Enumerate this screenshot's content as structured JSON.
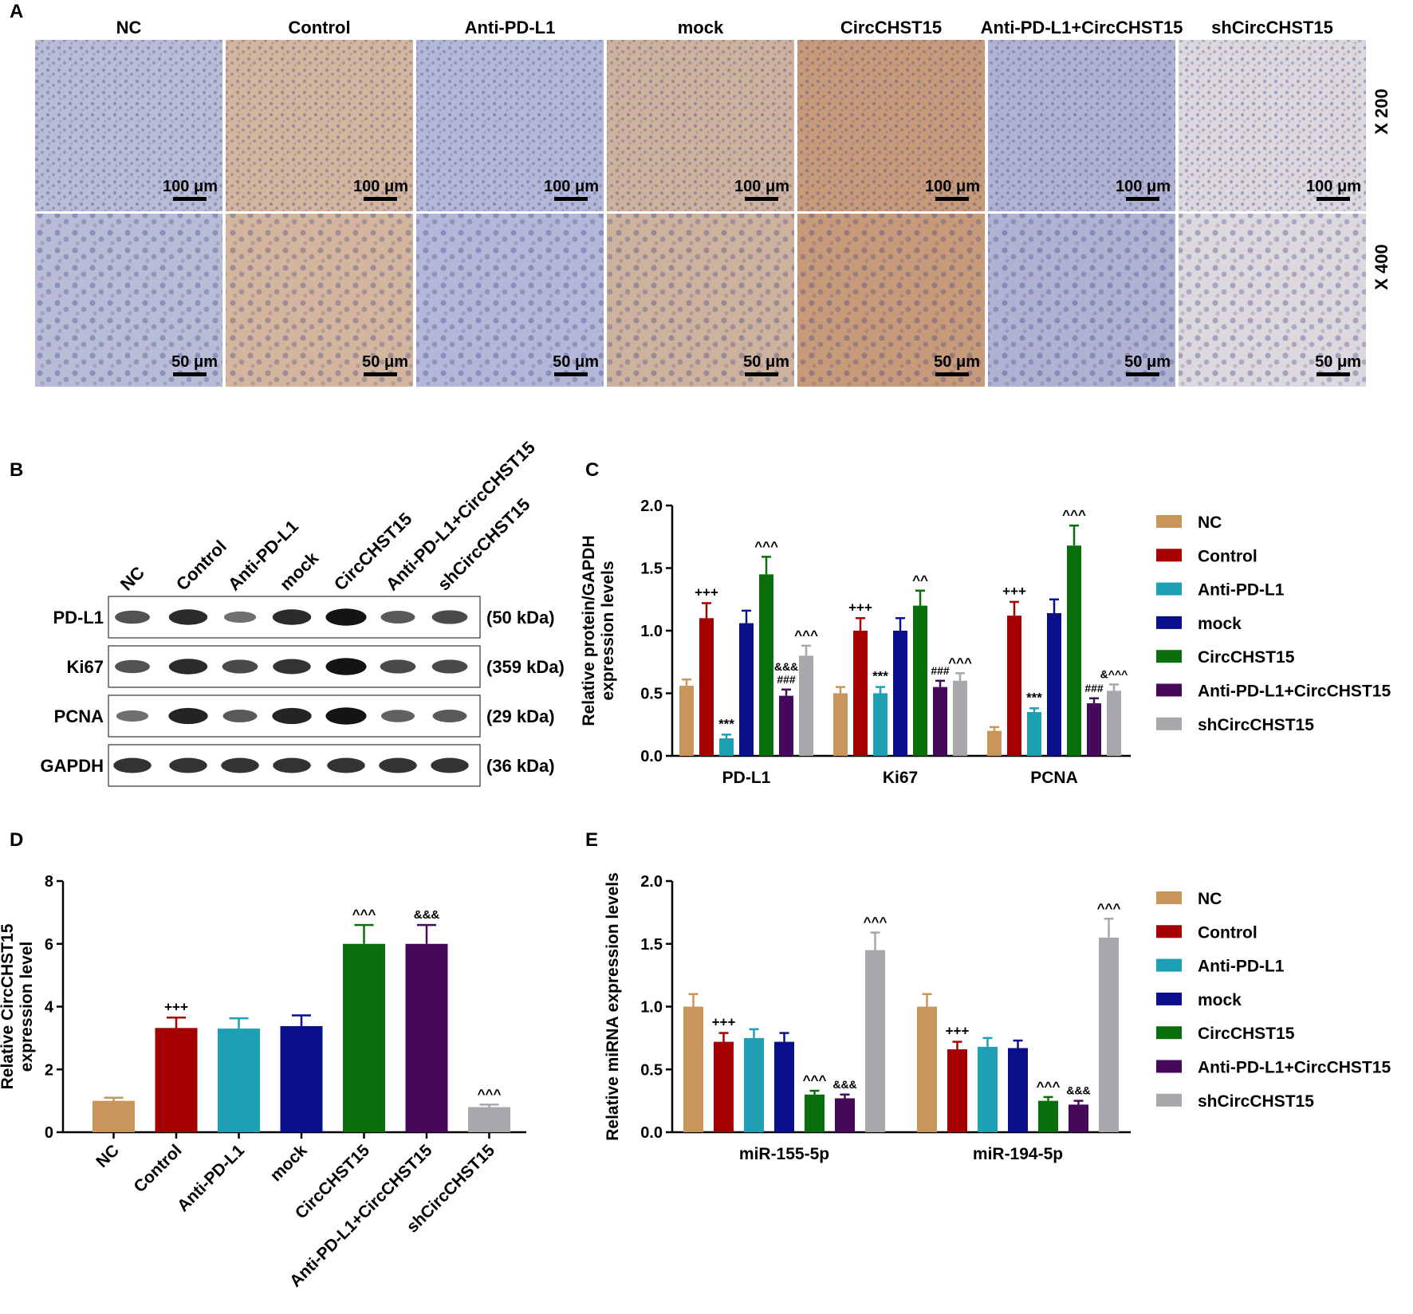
{
  "colors": {
    "NC": "#c8965a",
    "Control": "#a50000",
    "Anti-PD-L1": "#1ea0b4",
    "mock": "#0a0f8c",
    "CircCHST15": "#0a6e0a",
    "Anti-PD-L1+CircCHST15": "#46085a",
    "shCircCHST15": "#a8a8ac"
  },
  "groups": [
    "NC",
    "Control",
    "Anti-PD-L1",
    "mock",
    "CircCHST15",
    "Anti-PD-L1+CircCHST15",
    "shCircCHST15"
  ],
  "panelA": {
    "label": "A",
    "mag_rows": [
      "X 200",
      "X 400"
    ],
    "scalebars": [
      "100 μm",
      "50 μm"
    ],
    "tints": [
      "#b9bcd6",
      "#d4b69e",
      "#b3b8d8",
      "#cdb29e",
      "#c79a7a",
      "#b0b2d2",
      "#dcd8de"
    ]
  },
  "panelB": {
    "label": "B",
    "proteins": [
      "PD-L1",
      "Ki67",
      "PCNA",
      "GAPDH"
    ],
    "kda": [
      "(50 kDa)",
      "(359 kDa)",
      "(29 kDa)",
      "(36 kDa)"
    ],
    "band_intensity": [
      [
        0.55,
        0.8,
        0.35,
        0.8,
        0.95,
        0.5,
        0.6
      ],
      [
        0.55,
        0.8,
        0.6,
        0.75,
        0.95,
        0.6,
        0.6
      ],
      [
        0.35,
        0.85,
        0.5,
        0.85,
        0.95,
        0.45,
        0.5
      ],
      [
        0.75,
        0.75,
        0.75,
        0.75,
        0.75,
        0.75,
        0.75
      ]
    ]
  },
  "chart_data": [
    {
      "panel": "C",
      "type": "bar",
      "ylabel": "Relative protein/GAPDH expression levels",
      "ylim": [
        0,
        2.0
      ],
      "yticks": [
        "0.0",
        "0.5",
        "1.0",
        "1.5",
        "2.0"
      ],
      "categories": [
        "PD-L1",
        "Ki67",
        "PCNA"
      ],
      "legend": "right",
      "series": [
        {
          "name": "NC",
          "values": [
            0.56,
            0.5,
            0.2
          ],
          "errors": [
            0.05,
            0.05,
            0.03
          ],
          "annotations": [
            "",
            "",
            ""
          ]
        },
        {
          "name": "Control",
          "values": [
            1.1,
            1.0,
            1.12
          ],
          "errors": [
            0.12,
            0.1,
            0.11
          ],
          "annotations": [
            "+++",
            "+++",
            "+++"
          ]
        },
        {
          "name": "Anti-PD-L1",
          "values": [
            0.14,
            0.5,
            0.35
          ],
          "errors": [
            0.03,
            0.05,
            0.03
          ],
          "annotations": [
            "***",
            "***",
            "***"
          ]
        },
        {
          "name": "mock",
          "values": [
            1.06,
            1.0,
            1.14
          ],
          "errors": [
            0.1,
            0.1,
            0.11
          ],
          "annotations": [
            "",
            "",
            ""
          ]
        },
        {
          "name": "CircCHST15",
          "values": [
            1.45,
            1.2,
            1.68
          ],
          "errors": [
            0.14,
            0.12,
            0.16
          ],
          "annotations": [
            "^^^",
            "^^",
            "^^^"
          ]
        },
        {
          "name": "Anti-PD-L1+CircCHST15",
          "values": [
            0.48,
            0.55,
            0.42
          ],
          "errors": [
            0.05,
            0.05,
            0.04
          ],
          "annotations": [
            "&&&\n###",
            "###",
            "###"
          ]
        },
        {
          "name": "shCircCHST15",
          "values": [
            0.8,
            0.6,
            0.52
          ],
          "errors": [
            0.08,
            0.06,
            0.05
          ],
          "annotations": [
            "^^^",
            "^^^",
            "&^^^"
          ]
        }
      ]
    },
    {
      "panel": "D",
      "type": "bar",
      "ylabel": "Relative CircCHST15 expression level",
      "ylim": [
        0,
        8
      ],
      "yticks": [
        "0",
        "2",
        "4",
        "6",
        "8"
      ],
      "categories": [
        "NC",
        "Control",
        "Anti-PD-L1",
        "mock",
        "CircCHST15",
        "Anti-PD-L1+CircCHST15",
        "shCircCHST15"
      ],
      "values": [
        1.0,
        3.32,
        3.3,
        3.38,
        6.0,
        6.0,
        0.8
      ],
      "errors": [
        0.1,
        0.33,
        0.33,
        0.34,
        0.6,
        0.6,
        0.08
      ],
      "annotations": [
        "",
        "+++",
        "",
        "",
        "^^^",
        "&&&",
        "^^^"
      ]
    },
    {
      "panel": "E",
      "type": "bar",
      "ylabel": "Relative miRNA expression levels",
      "ylim": [
        0,
        2.0
      ],
      "yticks": [
        "0.0",
        "0.5",
        "1.0",
        "1.5",
        "2.0"
      ],
      "categories": [
        "miR-155-5p",
        "miR-194-5p"
      ],
      "legend": "right",
      "series": [
        {
          "name": "NC",
          "values": [
            1.0,
            1.0
          ],
          "errors": [
            0.1,
            0.1
          ],
          "annotations": [
            "",
            ""
          ]
        },
        {
          "name": "Control",
          "values": [
            0.72,
            0.66
          ],
          "errors": [
            0.07,
            0.06
          ],
          "annotations": [
            "+++",
            "+++"
          ]
        },
        {
          "name": "Anti-PD-L1",
          "values": [
            0.75,
            0.68
          ],
          "errors": [
            0.07,
            0.07
          ],
          "annotations": [
            "",
            ""
          ]
        },
        {
          "name": "mock",
          "values": [
            0.72,
            0.67
          ],
          "errors": [
            0.07,
            0.06
          ],
          "annotations": [
            "",
            ""
          ]
        },
        {
          "name": "CircCHST15",
          "values": [
            0.3,
            0.25
          ],
          "errors": [
            0.03,
            0.03
          ],
          "annotations": [
            "^^^",
            "^^^"
          ]
        },
        {
          "name": "Anti-PD-L1+CircCHST15",
          "values": [
            0.27,
            0.22
          ],
          "errors": [
            0.03,
            0.03
          ],
          "annotations": [
            "&&&",
            "&&&"
          ]
        },
        {
          "name": "shCircCHST15",
          "values": [
            1.45,
            1.55
          ],
          "errors": [
            0.14,
            0.15
          ],
          "annotations": [
            "^^^",
            "^^^"
          ]
        }
      ]
    }
  ]
}
